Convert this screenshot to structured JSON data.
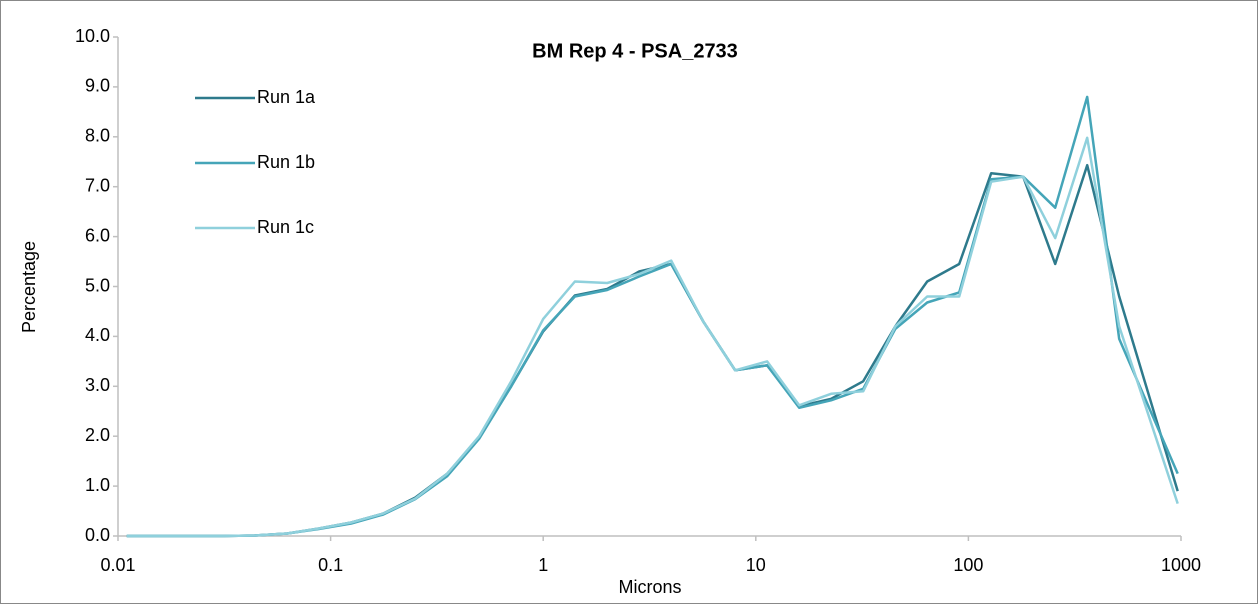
{
  "chart_data": {
    "type": "line",
    "title": "BM Rep 4 - PSA_2733",
    "x_label": "Microns",
    "y_label": "Percentage",
    "xscale": "log",
    "x": [
      0.011,
      0.0156,
      0.022,
      0.031,
      0.044,
      0.0625,
      0.088,
      0.125,
      0.177,
      0.25,
      0.354,
      0.5,
      0.707,
      1,
      1.41,
      2,
      2.83,
      4,
      5.66,
      8,
      11.3,
      16,
      22.6,
      32,
      45.3,
      64,
      90.5,
      128,
      181,
      256,
      362,
      512,
      965
    ],
    "series": [
      {
        "name": "Run 1a",
        "color": "#2e7a8c",
        "values": [
          0,
          0,
          0,
          0,
          0.01,
          0.05,
          0.15,
          0.27,
          0.45,
          0.77,
          1.25,
          1.97,
          3.0,
          4.1,
          4.82,
          4.95,
          5.3,
          5.45,
          4.3,
          3.32,
          3.42,
          2.6,
          2.75,
          3.1,
          4.2,
          5.1,
          5.45,
          7.27,
          7.2,
          5.45,
          7.43,
          4.8,
          0.9
        ]
      },
      {
        "name": "Run 1b",
        "color": "#45a5b8",
        "values": [
          0,
          0,
          0,
          0,
          0.01,
          0.05,
          0.14,
          0.25,
          0.43,
          0.74,
          1.2,
          1.95,
          3.0,
          4.12,
          4.8,
          4.93,
          5.2,
          5.45,
          4.3,
          3.32,
          3.42,
          2.57,
          2.72,
          2.95,
          4.15,
          4.68,
          4.88,
          7.15,
          7.2,
          6.58,
          8.8,
          3.95,
          1.25
        ]
      },
      {
        "name": "Run 1c",
        "color": "#8fd0dc",
        "values": [
          0,
          0,
          0,
          0,
          0.01,
          0.05,
          0.15,
          0.27,
          0.45,
          0.75,
          1.25,
          2.0,
          3.1,
          4.35,
          5.1,
          5.07,
          5.25,
          5.52,
          4.3,
          3.32,
          3.5,
          2.62,
          2.85,
          2.9,
          4.2,
          4.8,
          4.8,
          7.1,
          7.2,
          5.97,
          7.98,
          4.2,
          0.65
        ]
      }
    ],
    "xlim": [
      0.01,
      1000
    ],
    "xticks": [
      0.01,
      0.1,
      1,
      10,
      100,
      1000
    ],
    "ylim": [
      0,
      10
    ],
    "yticks": [
      {
        "value": 0,
        "label": "0.0"
      },
      {
        "value": 1,
        "label": "1.0"
      },
      {
        "value": 2,
        "label": "2.0"
      },
      {
        "value": 3,
        "label": "3.0"
      },
      {
        "value": 4,
        "label": "4.0"
      },
      {
        "value": 5,
        "label": "5.0"
      },
      {
        "value": 6,
        "label": "6.0"
      },
      {
        "value": 7,
        "label": "7.0"
      },
      {
        "value": 8,
        "label": "8.0"
      },
      {
        "value": 9,
        "label": "9.0"
      },
      {
        "value": 10,
        "label": "10.0"
      }
    ],
    "grid": false,
    "legend": "upper left"
  }
}
